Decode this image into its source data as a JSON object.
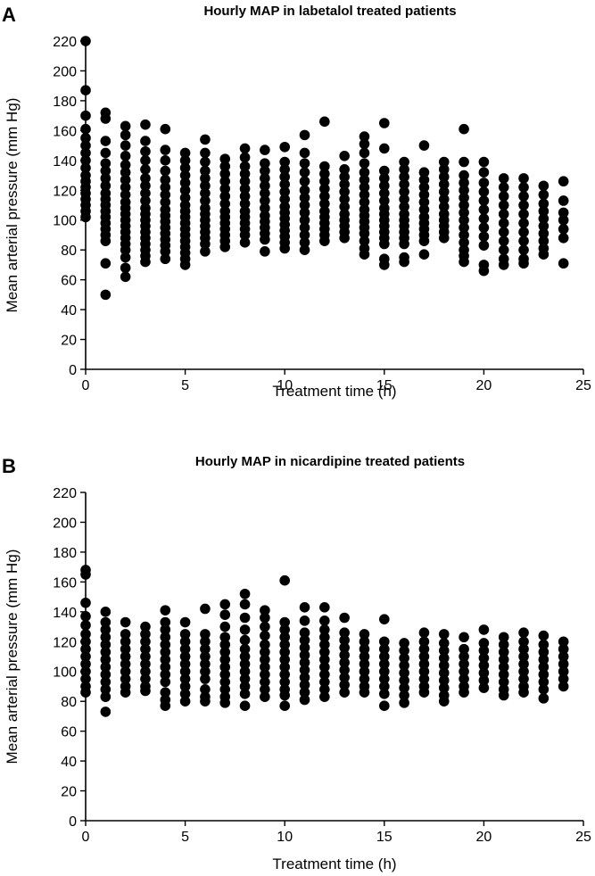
{
  "chart_data": [
    {
      "panel": "A",
      "type": "scatter",
      "title": "Hourly MAP in labetalol treated patients",
      "xlabel": "Treatment time (h)",
      "ylabel": "Mean arterial pressure (mm Hg)",
      "xlim": [
        0,
        25
      ],
      "ylim": [
        0,
        220
      ],
      "xticks": [
        0,
        5,
        10,
        15,
        20,
        25
      ],
      "yticks": [
        0,
        20,
        40,
        60,
        80,
        100,
        120,
        140,
        160,
        180,
        200,
        220
      ],
      "grid": false,
      "legend": "none",
      "marker_color": "#000000",
      "columns": [
        {
          "x": 0,
          "y": [
            220,
            187,
            170,
            161,
            155,
            150,
            145,
            140,
            135,
            130,
            126,
            122,
            118,
            114,
            110,
            106,
            102
          ]
        },
        {
          "x": 1,
          "y": [
            172,
            168,
            153,
            145,
            138,
            133,
            128,
            123,
            118,
            114,
            110,
            106,
            102,
            98,
            94,
            90,
            86,
            71,
            50
          ]
        },
        {
          "x": 2,
          "y": [
            163,
            157,
            150,
            143,
            137,
            132,
            127,
            122,
            117,
            112,
            108,
            104,
            100,
            96,
            92,
            88,
            84,
            80,
            75,
            68,
            62
          ]
        },
        {
          "x": 3,
          "y": [
            164,
            153,
            146,
            140,
            134,
            128,
            123,
            118,
            113,
            108,
            104,
            100,
            96,
            92,
            88,
            84,
            80,
            76,
            72
          ]
        },
        {
          "x": 4,
          "y": [
            161,
            147,
            140,
            133,
            127,
            122,
            117,
            112,
            107,
            103,
            99,
            95,
            91,
            87,
            83,
            79,
            74
          ]
        },
        {
          "x": 5,
          "y": [
            145,
            140,
            135,
            130,
            125,
            120,
            115,
            110,
            106,
            102,
            98,
            94,
            90,
            86,
            82,
            78,
            74,
            70
          ]
        },
        {
          "x": 6,
          "y": [
            154,
            145,
            139,
            133,
            128,
            123,
            118,
            113,
            108,
            104,
            100,
            96,
            92,
            88,
            84,
            79
          ]
        },
        {
          "x": 7,
          "y": [
            141,
            136,
            131,
            126,
            121,
            116,
            111,
            106,
            102,
            98,
            94,
            90,
            86,
            82
          ]
        },
        {
          "x": 8,
          "y": [
            148,
            142,
            136,
            131,
            126,
            121,
            116,
            111,
            106,
            102,
            98,
            94,
            90,
            85
          ]
        },
        {
          "x": 9,
          "y": [
            147,
            138,
            133,
            128,
            123,
            118,
            113,
            108,
            103,
            99,
            95,
            91,
            87,
            79
          ]
        },
        {
          "x": 10,
          "y": [
            149,
            139,
            134,
            129,
            124,
            119,
            114,
            109,
            105,
            101,
            97,
            93,
            89,
            85,
            81
          ]
        },
        {
          "x": 11,
          "y": [
            157,
            145,
            138,
            132,
            126,
            120,
            115,
            110,
            105,
            100,
            95,
            90,
            85,
            80
          ]
        },
        {
          "x": 12,
          "y": [
            166,
            136,
            131,
            126,
            121,
            116,
            111,
            106,
            102,
            98,
            94,
            90,
            86
          ]
        },
        {
          "x": 13,
          "y": [
            143,
            134,
            129,
            124,
            119,
            114,
            109,
            104,
            100,
            96,
            92,
            88
          ]
        },
        {
          "x": 14,
          "y": [
            156,
            151,
            145,
            138,
            132,
            127,
            122,
            117,
            112,
            107,
            103,
            99,
            95,
            91,
            86,
            81,
            77
          ]
        },
        {
          "x": 15,
          "y": [
            165,
            148,
            133,
            128,
            123,
            118,
            113,
            108,
            104,
            100,
            96,
            92,
            88,
            84,
            74,
            70
          ]
        },
        {
          "x": 16,
          "y": [
            139,
            134,
            129,
            124,
            119,
            114,
            109,
            104,
            100,
            96,
            92,
            88,
            84,
            75,
            72
          ]
        },
        {
          "x": 17,
          "y": [
            150,
            132,
            127,
            122,
            117,
            112,
            107,
            102,
            98,
            94,
            90,
            86,
            77
          ]
        },
        {
          "x": 18,
          "y": [
            139,
            134,
            129,
            124,
            119,
            114,
            109,
            104,
            100,
            96,
            92,
            88
          ]
        },
        {
          "x": 19,
          "y": [
            161,
            139,
            130,
            125,
            120,
            115,
            110,
            105,
            100,
            95,
            90,
            85,
            80,
            76,
            72
          ]
        },
        {
          "x": 20,
          "y": [
            139,
            132,
            125,
            119,
            113,
            107,
            101,
            95,
            89,
            83,
            70,
            66
          ]
        },
        {
          "x": 21,
          "y": [
            128,
            122,
            116,
            110,
            104,
            98,
            92,
            86,
            80,
            74,
            70
          ]
        },
        {
          "x": 22,
          "y": [
            128,
            122,
            116,
            110,
            104,
            98,
            92,
            86,
            80,
            74,
            71
          ]
        },
        {
          "x": 23,
          "y": [
            123,
            117,
            111,
            106,
            101,
            96,
            91,
            86,
            81,
            77
          ]
        },
        {
          "x": 24,
          "y": [
            126,
            113,
            105,
            100,
            94,
            88,
            71
          ]
        }
      ]
    },
    {
      "panel": "B",
      "type": "scatter",
      "title": "Hourly MAP in nicardipine treated patients",
      "xlabel": "Treatment time (h)",
      "ylabel": "Mean arterial pressure (mm Hg)",
      "xlim": [
        0,
        25
      ],
      "ylim": [
        0,
        220
      ],
      "xticks": [
        0,
        5,
        10,
        15,
        20,
        25
      ],
      "yticks": [
        0,
        20,
        40,
        60,
        80,
        100,
        120,
        140,
        160,
        180,
        200,
        220
      ],
      "grid": false,
      "legend": "none",
      "marker_color": "#000000",
      "columns": [
        {
          "x": 0,
          "y": [
            168,
            165,
            146,
            137,
            131,
            125,
            120,
            115,
            110,
            105,
            100,
            95,
            90,
            86
          ]
        },
        {
          "x": 1,
          "y": [
            140,
            133,
            128,
            123,
            118,
            113,
            108,
            103,
            98,
            93,
            88,
            83,
            73
          ]
        },
        {
          "x": 2,
          "y": [
            133,
            125,
            120,
            115,
            110,
            105,
            100,
            95,
            90,
            86
          ]
        },
        {
          "x": 3,
          "y": [
            130,
            125,
            120,
            115,
            110,
            105,
            100,
            95,
            90,
            87
          ]
        },
        {
          "x": 4,
          "y": [
            141,
            133,
            128,
            123,
            118,
            113,
            108,
            103,
            98,
            93,
            86,
            81,
            77
          ]
        },
        {
          "x": 5,
          "y": [
            133,
            125,
            120,
            115,
            110,
            105,
            100,
            95,
            90,
            85,
            80
          ]
        },
        {
          "x": 6,
          "y": [
            142,
            125,
            120,
            115,
            110,
            105,
            100,
            95,
            88,
            83,
            80
          ]
        },
        {
          "x": 7,
          "y": [
            145,
            138,
            130,
            123,
            118,
            113,
            108,
            103,
            98,
            93,
            88,
            83,
            79
          ]
        },
        {
          "x": 8,
          "y": [
            152,
            145,
            136,
            128,
            121,
            115,
            110,
            105,
            100,
            95,
            90,
            85,
            77
          ]
        },
        {
          "x": 9,
          "y": [
            141,
            136,
            130,
            124,
            118,
            113,
            108,
            103,
            98,
            93,
            88,
            83
          ]
        },
        {
          "x": 10,
          "y": [
            161,
            133,
            128,
            123,
            118,
            113,
            108,
            103,
            98,
            93,
            88,
            84,
            77
          ]
        },
        {
          "x": 11,
          "y": [
            143,
            134,
            126,
            121,
            116,
            111,
            106,
            101,
            96,
            91,
            86,
            81
          ]
        },
        {
          "x": 12,
          "y": [
            143,
            134,
            128,
            123,
            118,
            113,
            108,
            103,
            98,
            93,
            88,
            83
          ]
        },
        {
          "x": 13,
          "y": [
            136,
            126,
            121,
            116,
            111,
            106,
            101,
            96,
            91,
            86
          ]
        },
        {
          "x": 14,
          "y": [
            125,
            120,
            115,
            110,
            105,
            100,
            95,
            90,
            86
          ]
        },
        {
          "x": 15,
          "y": [
            135,
            120,
            115,
            110,
            105,
            100,
            95,
            90,
            85,
            77
          ]
        },
        {
          "x": 16,
          "y": [
            119,
            114,
            109,
            104,
            99,
            94,
            89,
            84,
            79
          ]
        },
        {
          "x": 17,
          "y": [
            126,
            120,
            115,
            110,
            105,
            100,
            95,
            90,
            86
          ]
        },
        {
          "x": 18,
          "y": [
            125,
            119,
            114,
            109,
            104,
            99,
            94,
            89,
            84,
            80
          ]
        },
        {
          "x": 19,
          "y": [
            123,
            115,
            110,
            105,
            100,
            95,
            90,
            86
          ]
        },
        {
          "x": 20,
          "y": [
            128,
            119,
            114,
            109,
            104,
            99,
            94,
            89
          ]
        },
        {
          "x": 21,
          "y": [
            123,
            118,
            113,
            108,
            103,
            98,
            93,
            88,
            84
          ]
        },
        {
          "x": 22,
          "y": [
            126,
            120,
            115,
            110,
            105,
            100,
            95,
            90,
            86
          ]
        },
        {
          "x": 23,
          "y": [
            124,
            118,
            113,
            108,
            103,
            98,
            93,
            88,
            82
          ]
        },
        {
          "x": 24,
          "y": [
            120,
            115,
            110,
            105,
            100,
            95,
            90
          ]
        }
      ]
    }
  ]
}
